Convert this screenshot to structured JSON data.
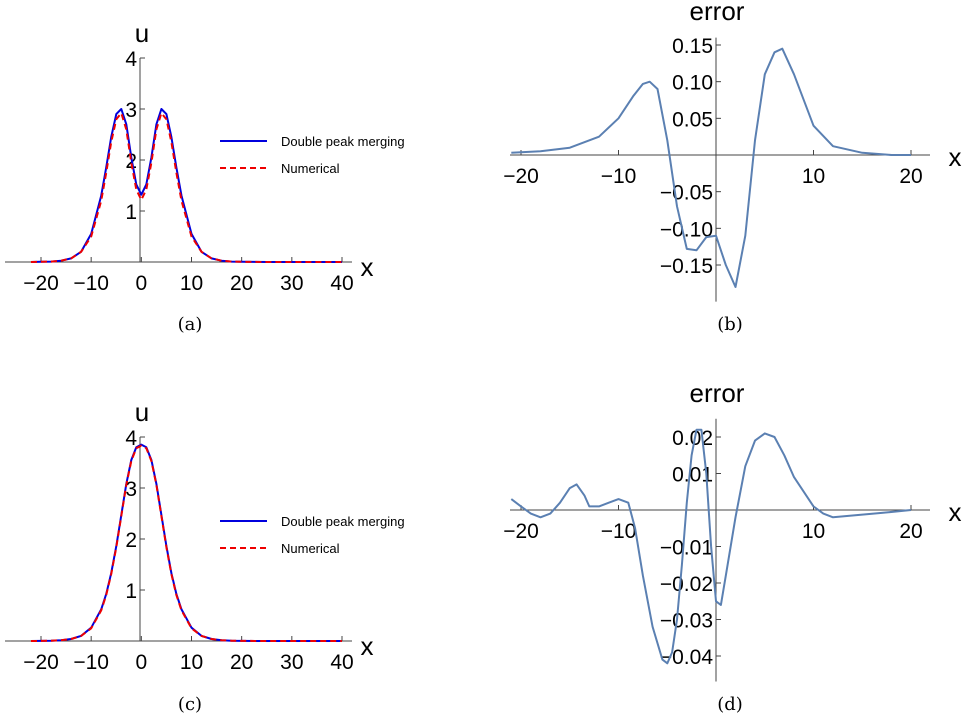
{
  "chart_data": [
    {
      "panel": "a",
      "type": "line",
      "caption": "(a)",
      "xlabel": "x",
      "ylabel": "u",
      "xlim": [
        -22,
        40
      ],
      "ylim": [
        0,
        4
      ],
      "xticks": [
        "−20",
        "−10",
        "0",
        "10",
        "20",
        "30",
        "40"
      ],
      "yticks": [
        "1",
        "2",
        "3",
        "4"
      ],
      "legend_position": "right",
      "series": [
        {
          "name": "Double peak merging",
          "color": "#0000dd",
          "style": "solid",
          "x": [
            -22,
            -20,
            -18,
            -16,
            -14,
            -12,
            -10,
            -8,
            -7,
            -6,
            -5,
            -4,
            -3,
            -2,
            -1,
            0,
            1,
            2,
            3,
            4,
            5,
            6,
            7,
            8,
            10,
            12,
            14,
            16,
            18,
            20,
            25,
            30,
            35,
            40
          ],
          "y": [
            0.0,
            0.003,
            0.008,
            0.025,
            0.07,
            0.2,
            0.55,
            1.3,
            1.85,
            2.45,
            2.9,
            3.0,
            2.7,
            2.05,
            1.52,
            1.32,
            1.52,
            2.05,
            2.7,
            3.0,
            2.9,
            2.45,
            1.85,
            1.3,
            0.55,
            0.2,
            0.07,
            0.025,
            0.008,
            0.003,
            0.0,
            0.0,
            0.0,
            0.0
          ]
        },
        {
          "name": "Numerical",
          "color": "#ee0000",
          "style": "dashed",
          "x": [
            -22,
            -20,
            -18,
            -16,
            -14,
            -12,
            -10,
            -8,
            -7,
            -6,
            -5,
            -4,
            -3,
            -2,
            -1,
            0,
            1,
            2,
            3,
            4,
            5,
            6,
            7,
            8,
            10,
            12,
            14,
            16,
            18,
            20,
            25,
            30,
            35,
            40
          ],
          "y": [
            0.0,
            0.003,
            0.008,
            0.025,
            0.07,
            0.2,
            0.5,
            1.2,
            1.75,
            2.35,
            2.8,
            2.92,
            2.6,
            1.95,
            1.42,
            1.22,
            1.42,
            1.95,
            2.6,
            2.92,
            2.8,
            2.35,
            1.75,
            1.2,
            0.5,
            0.2,
            0.07,
            0.025,
            0.008,
            0.003,
            0.0,
            0.0,
            0.0,
            0.0
          ]
        }
      ]
    },
    {
      "panel": "b",
      "type": "line",
      "caption": "(b)",
      "title": "error",
      "xlabel": "x",
      "xlim": [
        -21,
        20
      ],
      "ylim": [
        -0.2,
        0.16
      ],
      "xticks": [
        "−20",
        "−10",
        "10",
        "20"
      ],
      "yticks": [
        "0.15",
        "0.10",
        "0.05",
        "−0.05",
        "−0.10",
        "−0.15"
      ],
      "ytick_values": [
        0.15,
        0.1,
        0.05,
        -0.05,
        -0.1,
        -0.15
      ],
      "series": [
        {
          "color": "#5b80b2",
          "x": [
            -21,
            -18,
            -15,
            -12,
            -10,
            -8.5,
            -7.5,
            -6.8,
            -6,
            -5,
            -4,
            -3,
            -2,
            -1,
            0,
            1,
            2,
            3,
            4,
            5,
            6,
            6.8,
            8,
            10,
            12,
            15,
            18,
            20
          ],
          "y": [
            0.003,
            0.005,
            0.01,
            0.025,
            0.05,
            0.08,
            0.097,
            0.1,
            0.09,
            0.02,
            -0.07,
            -0.128,
            -0.13,
            -0.112,
            -0.11,
            -0.15,
            -0.18,
            -0.11,
            0.02,
            0.11,
            0.14,
            0.145,
            0.11,
            0.04,
            0.012,
            0.003,
            0.0,
            0.0
          ]
        }
      ]
    },
    {
      "panel": "c",
      "type": "line",
      "caption": "(c)",
      "xlabel": "x",
      "ylabel": "u",
      "xlim": [
        -22,
        40
      ],
      "ylim": [
        0,
        4
      ],
      "xticks": [
        "−20",
        "−10",
        "0",
        "10",
        "20",
        "30",
        "40"
      ],
      "yticks": [
        "1",
        "2",
        "3",
        "4"
      ],
      "legend_position": "right",
      "series": [
        {
          "name": "Double peak merging",
          "color": "#0000dd",
          "style": "solid",
          "x": [
            -22,
            -20,
            -18,
            -16,
            -14,
            -12,
            -10,
            -8,
            -7,
            -6,
            -5,
            -4,
            -3,
            -2,
            -1,
            0,
            1,
            2,
            3,
            4,
            5,
            6,
            7,
            8,
            10,
            12,
            14,
            16,
            18,
            20,
            25,
            30,
            35,
            40
          ],
          "y": [
            0.0,
            0.002,
            0.005,
            0.015,
            0.04,
            0.1,
            0.26,
            0.62,
            0.92,
            1.33,
            1.86,
            2.47,
            3.08,
            3.55,
            3.8,
            3.85,
            3.8,
            3.55,
            3.08,
            2.47,
            1.86,
            1.33,
            0.92,
            0.62,
            0.26,
            0.1,
            0.04,
            0.015,
            0.005,
            0.002,
            0.0,
            0.0,
            0.0,
            0.0
          ]
        },
        {
          "name": "Numerical",
          "color": "#ee0000",
          "style": "dashed",
          "x": [
            -22,
            -20,
            -18,
            -16,
            -14,
            -12,
            -10,
            -8,
            -7,
            -6,
            -5,
            -4,
            -3,
            -2,
            -1,
            0,
            1,
            2,
            3,
            4,
            5,
            6,
            7,
            8,
            10,
            12,
            14,
            16,
            18,
            20,
            25,
            30,
            35,
            40
          ],
          "y": [
            0.0,
            0.002,
            0.005,
            0.015,
            0.04,
            0.1,
            0.25,
            0.6,
            0.9,
            1.31,
            1.84,
            2.45,
            3.06,
            3.53,
            3.78,
            3.83,
            3.78,
            3.53,
            3.06,
            2.45,
            1.84,
            1.31,
            0.9,
            0.6,
            0.25,
            0.1,
            0.04,
            0.015,
            0.005,
            0.002,
            0.0,
            0.0,
            0.0,
            0.0
          ]
        }
      ]
    },
    {
      "panel": "d",
      "type": "line",
      "caption": "(d)",
      "title": "error",
      "xlabel": "x",
      "xlim": [
        -21,
        20
      ],
      "ylim": [
        -0.047,
        0.025
      ],
      "xticks": [
        "−20",
        "−10",
        "10",
        "20"
      ],
      "yticks": [
        "0.02",
        "0.01",
        "−0.01",
        "−0.02",
        "−0.03",
        "−0.04"
      ],
      "ytick_values": [
        0.02,
        0.01,
        -0.01,
        -0.02,
        -0.03,
        -0.04
      ],
      "series": [
        {
          "color": "#5b80b2",
          "x": [
            -21,
            -20,
            -19,
            -18,
            -17,
            -16,
            -15,
            -14.3,
            -13.5,
            -13,
            -12,
            -11,
            -10,
            -9,
            -8.3,
            -7.5,
            -6.5,
            -5.5,
            -5,
            -4.5,
            -4,
            -3.5,
            -3,
            -2.5,
            -2,
            -1.5,
            -1,
            -0.5,
            0,
            0.5,
            1,
            2,
            3,
            4,
            5,
            6,
            7,
            8,
            10,
            11,
            12,
            14,
            17,
            20
          ],
          "y": [
            0.003,
            0.001,
            -0.001,
            -0.002,
            -0.001,
            0.002,
            0.006,
            0.007,
            0.004,
            0.001,
            0.001,
            0.002,
            0.003,
            0.002,
            -0.005,
            -0.018,
            -0.032,
            -0.041,
            -0.042,
            -0.039,
            -0.03,
            -0.015,
            0.002,
            0.015,
            0.022,
            0.022,
            0.01,
            -0.01,
            -0.025,
            -0.026,
            -0.018,
            -0.002,
            0.012,
            0.019,
            0.021,
            0.02,
            0.015,
            0.009,
            0.001,
            -0.001,
            -0.002,
            -0.0015,
            -0.0008,
            0.0
          ]
        }
      ]
    }
  ]
}
